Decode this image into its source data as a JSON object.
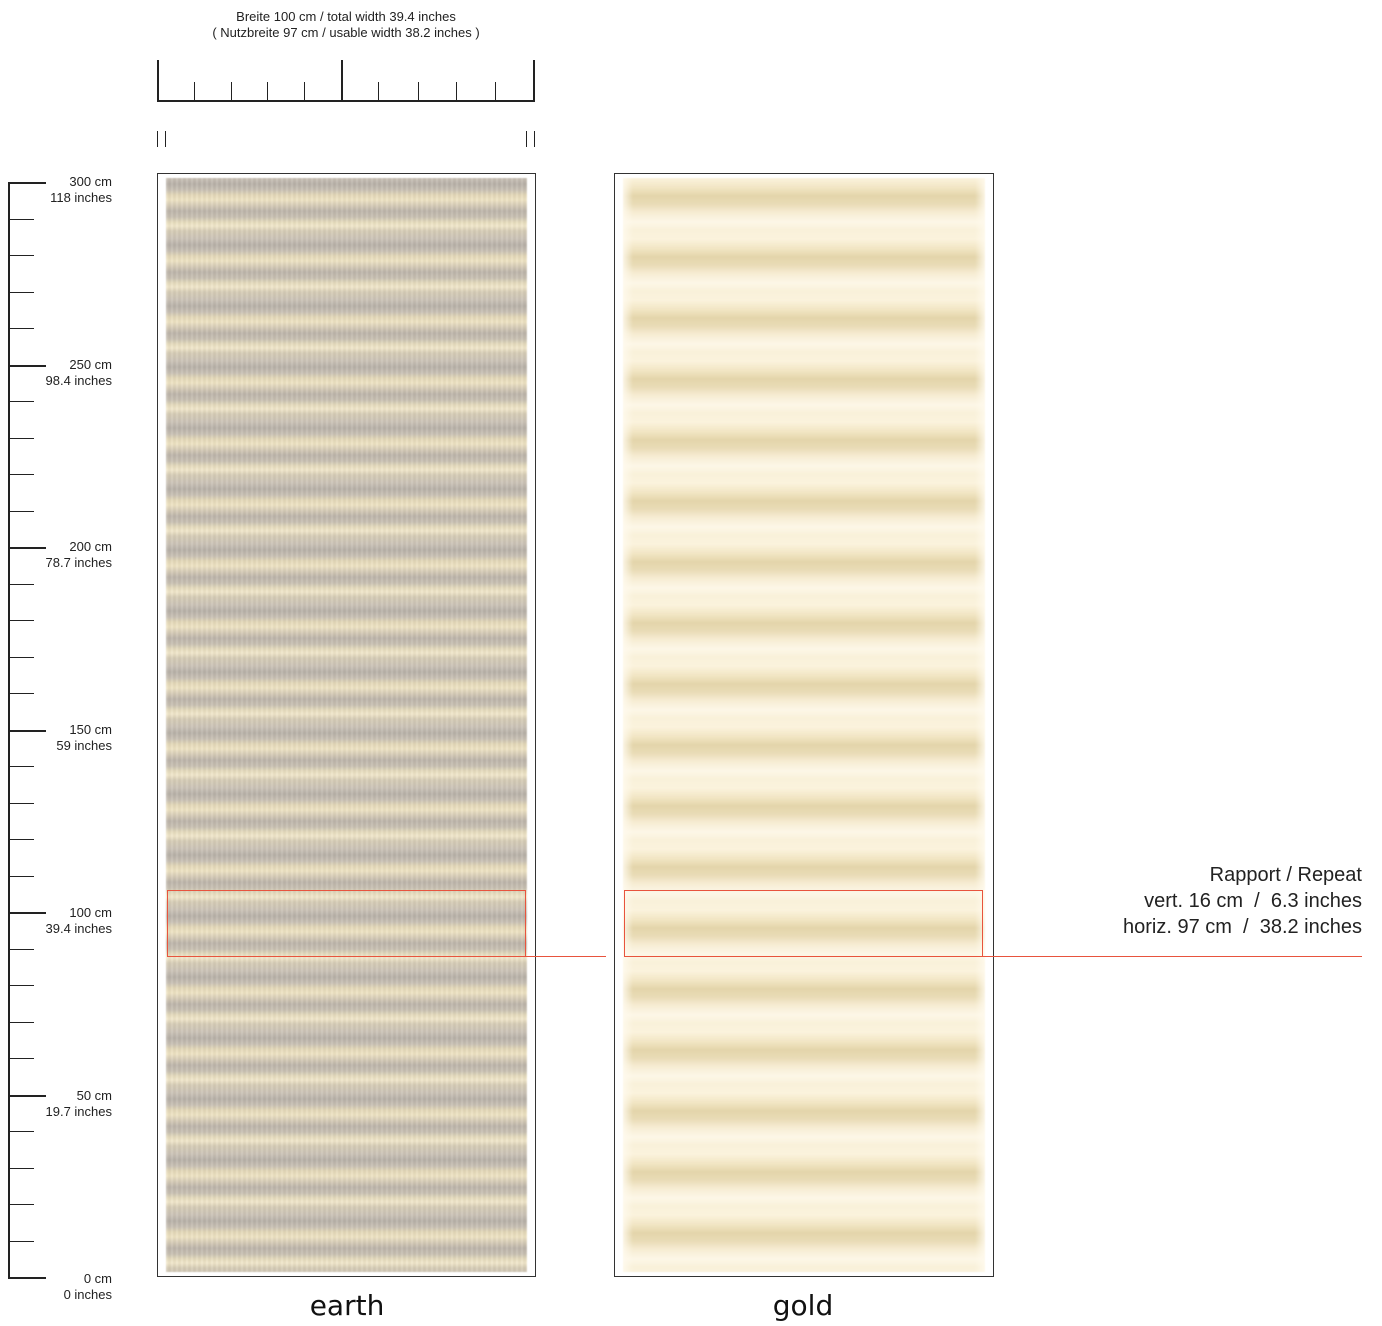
{
  "width_caption": {
    "line1": "Breite 100 cm / total width 39.4 inches",
    "line2": "( Nutzbreite 97 cm / usable width 38.2 inches )"
  },
  "vertical_scale": [
    {
      "cm": "300 cm",
      "inches": "118 inches"
    },
    {
      "cm": "250 cm",
      "inches": "98.4 inches"
    },
    {
      "cm": "200 cm",
      "inches": "78.7 inches"
    },
    {
      "cm": "150 cm",
      "inches": "59 inches"
    },
    {
      "cm": "100 cm",
      "inches": "39.4 inches"
    },
    {
      "cm": "50 cm",
      "inches": "19.7 inches"
    },
    {
      "cm": "0 cm",
      "inches": "0 inches"
    }
  ],
  "swatches": [
    {
      "name": "earth"
    },
    {
      "name": "gold"
    }
  ],
  "repeat": {
    "title": "Rapport / Repeat",
    "vertical": "vert. 16 cm  /  6.3 inches",
    "horizontal": "horiz. 97 cm  /  38.2 inches"
  },
  "colors": {
    "repeat_marker": "#e8543e",
    "earth_tones": [
      "#cbc3b7",
      "#b8b1a8",
      "#e4d8b8",
      "#efe4c4"
    ],
    "gold_tones": [
      "#fbf3dd",
      "#f1e5c3",
      "#e4d5ab",
      "#fdf7e7"
    ]
  }
}
